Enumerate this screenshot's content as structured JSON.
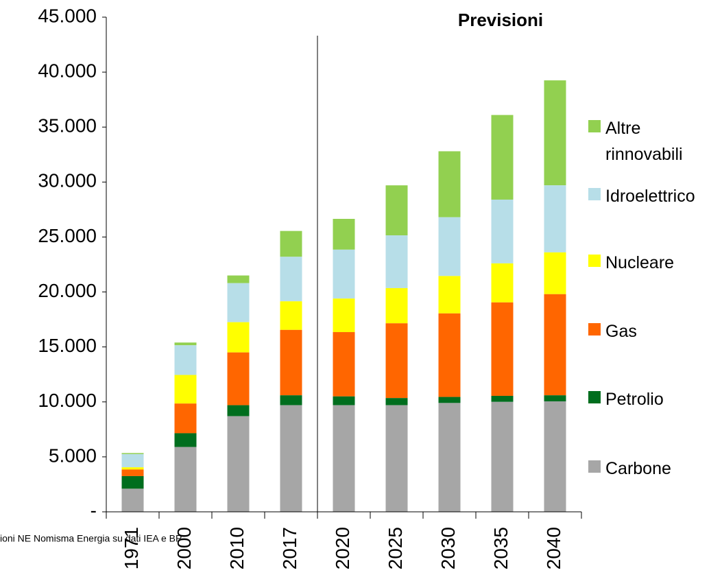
{
  "chart_data": {
    "type": "bar",
    "stacked": true,
    "categories": [
      "1971",
      "2000",
      "2010",
      "2017",
      "2020",
      "2025",
      "2030",
      "2035",
      "2040"
    ],
    "series": [
      {
        "name": "Carbone",
        "color": "#a6a6a6",
        "values": [
          2100,
          5900,
          8700,
          9700,
          9700,
          9700,
          9900,
          10000,
          10050
        ]
      },
      {
        "name": "Petrolio",
        "color": "#006e1e",
        "values": [
          1150,
          1250,
          1000,
          900,
          800,
          650,
          550,
          550,
          550
        ]
      },
      {
        "name": "Gas",
        "color": "#ff6600",
        "values": [
          600,
          2700,
          4800,
          5950,
          5850,
          6800,
          7600,
          8500,
          9200
        ]
      },
      {
        "name": "Nucleare",
        "color": "#ffff00",
        "values": [
          200,
          2600,
          2750,
          2600,
          3050,
          3200,
          3400,
          3550,
          3800
        ]
      },
      {
        "name": "Idroelettrico",
        "color": "#b7dee8",
        "values": [
          1200,
          2700,
          3550,
          4050,
          4450,
          4800,
          5350,
          5800,
          6100
        ]
      },
      {
        "name": "Altre rinnovabili",
        "color": "#92d050",
        "values": [
          100,
          250,
          700,
          2350,
          2800,
          4550,
          6000,
          7700,
          9550
        ]
      }
    ],
    "ylim": [
      0,
      45000
    ],
    "yticks": [
      {
        "value": 0,
        "label": "-"
      },
      {
        "value": 5000,
        "label": "5.000"
      },
      {
        "value": 10000,
        "label": "10.000"
      },
      {
        "value": 15000,
        "label": "15.000"
      },
      {
        "value": 20000,
        "label": "20.000"
      },
      {
        "value": 25000,
        "label": "25.000"
      },
      {
        "value": 30000,
        "label": "30.000"
      },
      {
        "value": 35000,
        "label": "35.000"
      },
      {
        "value": 40000,
        "label": "40.000"
      },
      {
        "value": 45000,
        "label": "45.000"
      }
    ],
    "annotation": "Previsioni",
    "source": "ioni NE Nomisma Energia su dati IEA e BP",
    "legend": "right"
  }
}
